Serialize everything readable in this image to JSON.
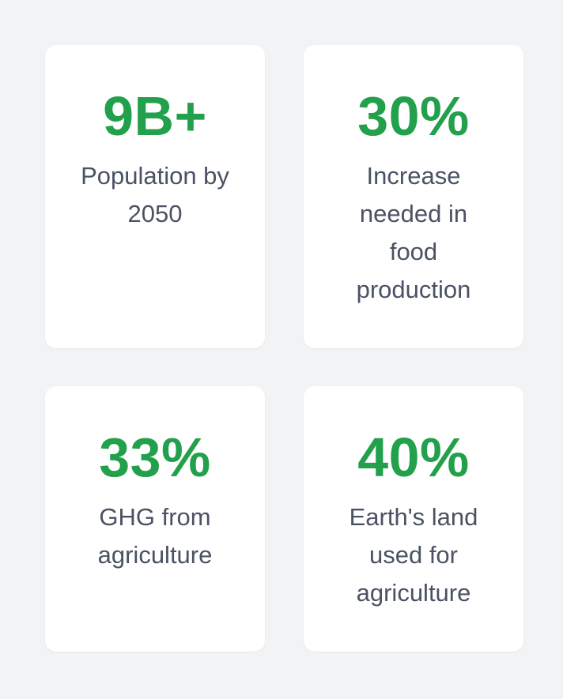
{
  "colors": {
    "background": "#f2f3f5",
    "card": "#ffffff",
    "accent": "#22a04b",
    "label_text": "#4a5263"
  },
  "stats": [
    {
      "value": "9B+",
      "label": "Population by 2050"
    },
    {
      "value": "30%",
      "label": "Increase needed in food production"
    },
    {
      "value": "33%",
      "label": "GHG from agriculture"
    },
    {
      "value": "40%",
      "label": "Earth's land used for agriculture"
    }
  ]
}
